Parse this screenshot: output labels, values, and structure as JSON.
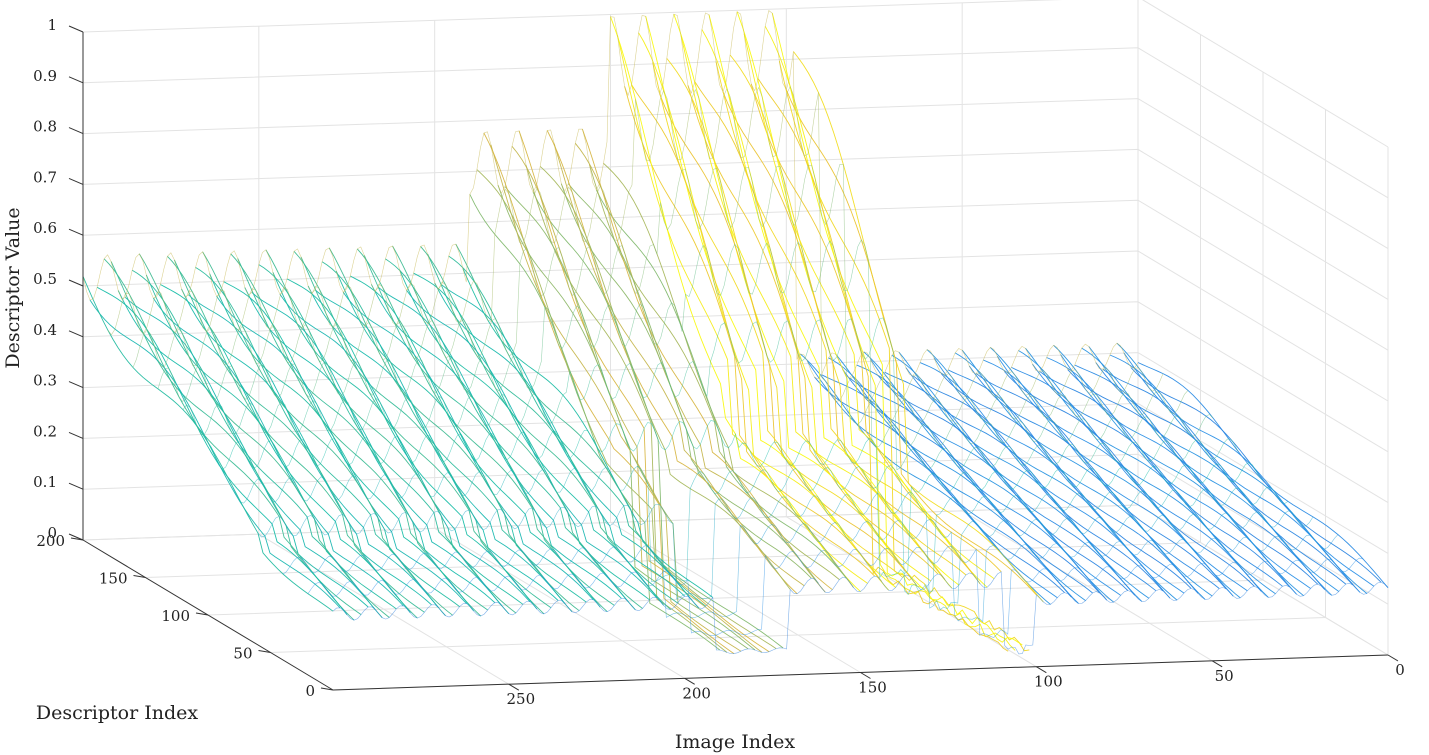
{
  "chart_data": {
    "type": "surface-mesh-3d",
    "xlabel": "Image Index",
    "ylabel": "Descriptor Index",
    "zlabel": "Descriptor Value",
    "xlim": [
      0,
      300
    ],
    "ylim": [
      0,
      200
    ],
    "zlim": [
      0,
      1
    ],
    "x_ticks": [
      "0",
      "50",
      "100",
      "150",
      "200",
      "250"
    ],
    "y_ticks": [
      "0",
      "50",
      "100",
      "150",
      "200"
    ],
    "z_ticks": [
      "0",
      "0.1",
      "0.2",
      "0.3",
      "0.4",
      "0.5",
      "0.6",
      "0.7",
      "0.8",
      "0.9",
      "1"
    ],
    "grid": true,
    "colormap": "parula",
    "colors": {
      "low": "#3e26a8",
      "mid_low": "#2a8fe6",
      "mid": "#17bda8",
      "mid_high": "#e8b53a",
      "high": "#f9fb0e"
    },
    "bands": [
      {
        "x_start": 120,
        "x_end": 300,
        "y_start": 0,
        "y_end": 200,
        "value": 0.12
      },
      {
        "x_start": 192,
        "x_end": 300,
        "y_start": 0,
        "y_end": 200,
        "value": 0.36
      },
      {
        "x_start": 110,
        "x_end": 170,
        "y_start": 0,
        "y_end": 200,
        "value": 0.42
      },
      {
        "x_start": 182,
        "x_end": 300,
        "y_start": 60,
        "y_end": 200,
        "value": 0.56
      },
      {
        "x_start": 150,
        "x_end": 190,
        "y_start": 100,
        "y_end": 200,
        "value": 0.78
      },
      {
        "x_start": 98,
        "x_end": 150,
        "y_start": 110,
        "y_end": 200,
        "value": 1.0
      },
      {
        "x_start": 0,
        "x_end": 100,
        "y_start": 0,
        "y_end": 200,
        "value": 0.32
      }
    ]
  }
}
